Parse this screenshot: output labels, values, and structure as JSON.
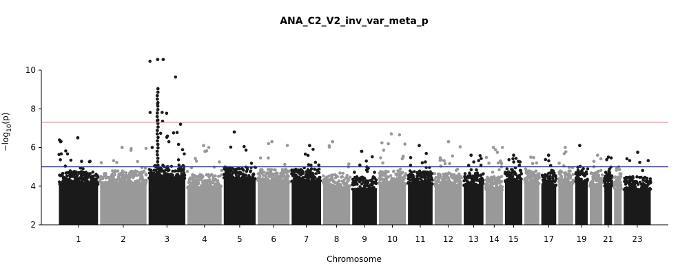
{
  "chart_data": {
    "type": "scatter",
    "title": "ANA_C2_V2_inv_var_meta_p",
    "xlabel": "Chromosome",
    "ylabel_prefix": "−log",
    "ylabel_sub": "10",
    "ylabel_suffix": "(p)",
    "ylim": [
      2,
      11
    ],
    "yticks": [
      2,
      4,
      6,
      8,
      10
    ],
    "grid": false,
    "colors": {
      "odd": "#1a1a1a",
      "even": "#999999",
      "genome_wide_line": "#e8827e",
      "suggestive_line": "#2b2bb0"
    },
    "thresholds": {
      "genome_wide": 7.3,
      "suggestive": 5.0
    },
    "x_tick_labels": [
      "1",
      "2",
      "3",
      "4",
      "5",
      "6",
      "7",
      "8",
      "9",
      "10",
      "11",
      "12",
      "13",
      "14",
      "15",
      "17",
      "19",
      "21",
      "23"
    ],
    "chromosomes": [
      {
        "chr": "1",
        "start": 0,
        "end": 17,
        "max": 6.5,
        "dense": 4.5
      },
      {
        "chr": "2",
        "start": 17,
        "end": 37,
        "max": 6.0,
        "dense": 4.5
      },
      {
        "chr": "3",
        "start": 37,
        "end": 53,
        "max": 10.55,
        "dense": 4.8
      },
      {
        "chr": "4",
        "start": 53,
        "end": 68,
        "max": 6.1,
        "dense": 4.3
      },
      {
        "chr": "5",
        "start": 68,
        "end": 82,
        "max": 6.8,
        "dense": 4.7
      },
      {
        "chr": "6",
        "start": 82,
        "end": 96,
        "max": 6.3,
        "dense": 4.6
      },
      {
        "chr": "7",
        "start": 96,
        "end": 109,
        "max": 6.1,
        "dense": 4.6
      },
      {
        "chr": "8",
        "start": 109,
        "end": 121,
        "max": 6.3,
        "dense": 4.3
      },
      {
        "chr": "9",
        "start": 121,
        "end": 132,
        "max": 5.8,
        "dense": 4.2
      },
      {
        "chr": "10",
        "start": 132,
        "end": 144,
        "max": 6.7,
        "dense": 4.5
      },
      {
        "chr": "11",
        "start": 144,
        "end": 155,
        "max": 6.1,
        "dense": 4.5
      },
      {
        "chr": "12",
        "start": 155,
        "end": 167,
        "max": 6.3,
        "dense": 4.4
      },
      {
        "chr": "13",
        "start": 167,
        "end": 176,
        "max": 5.6,
        "dense": 4.4
      },
      {
        "chr": "14",
        "start": 176,
        "end": 184,
        "max": 6.0,
        "dense": 4.2
      },
      {
        "chr": "15",
        "start": 184,
        "end": 192,
        "max": 5.6,
        "dense": 4.6
      },
      {
        "chr": "16",
        "start": 192,
        "end": 199,
        "max": 5.5,
        "dense": 4.5
      },
      {
        "chr": "17",
        "start": 199,
        "end": 206,
        "max": 5.6,
        "dense": 4.4
      },
      {
        "chr": "18",
        "start": 206,
        "end": 213,
        "max": 6.0,
        "dense": 4.5
      },
      {
        "chr": "19",
        "start": 213,
        "end": 219,
        "max": 6.1,
        "dense": 4.6
      },
      {
        "chr": "20",
        "start": 219,
        "end": 225,
        "max": 5.6,
        "dense": 4.4
      },
      {
        "chr": "21",
        "start": 225,
        "end": 229,
        "max": 5.5,
        "dense": 4.4
      },
      {
        "chr": "22",
        "start": 229,
        "end": 233,
        "max": 5.0,
        "dense": 4.2
      },
      {
        "chr": "23",
        "start": 233,
        "end": 245,
        "max": 5.75,
        "dense": 4.2
      }
    ]
  }
}
